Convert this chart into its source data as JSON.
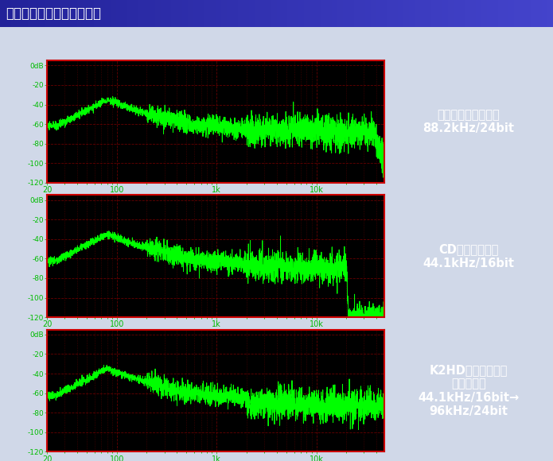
{
  "title": "各音楽信号のスペクトラム",
  "title_bg_left": "#2233bb",
  "title_bg_right": "#3344cc",
  "title_color": "#ffffff",
  "bg_color": "#d0d8e8",
  "plot_bg": "#000000",
  "grid_color": "#660000",
  "spine_color": "#cc0000",
  "line_color": "#00ff00",
  "label_color": "#00bb00",
  "panels": [
    {
      "label": "オリジナルマスター\n88.2kHz/24bit",
      "label_bg": "#993355",
      "cutoff_freq": 40000,
      "sharp_cutoff": false,
      "noise_floor_base": -65,
      "seed": 10
    },
    {
      "label": "CDフォーマット\n44.1kHz/16bit",
      "label_bg": "#557755",
      "cutoff_freq": 21000,
      "sharp_cutoff": true,
      "noise_floor_base": -68,
      "seed": 20
    },
    {
      "label": "K2HDプロセッサー\nによる変換\n44.1kHz/16bit→\n96kHz/24bit",
      "label_bg": "#224477",
      "cutoff_freq": 48000,
      "sharp_cutoff": false,
      "noise_floor_base": -70,
      "seed": 30
    }
  ],
  "ylim": [
    -120,
    5
  ],
  "yticks": [
    0,
    -20,
    -40,
    -60,
    -80,
    -100,
    -120
  ],
  "ytick_labels": [
    "0dB",
    "-20",
    "-40",
    "-60",
    "-80",
    "-100",
    "-120"
  ],
  "xlim": [
    20,
    48000
  ],
  "xtick_positions": [
    20,
    100,
    1000,
    10000
  ],
  "xtick_labels": [
    "20",
    "100",
    "1k",
    "10k"
  ]
}
